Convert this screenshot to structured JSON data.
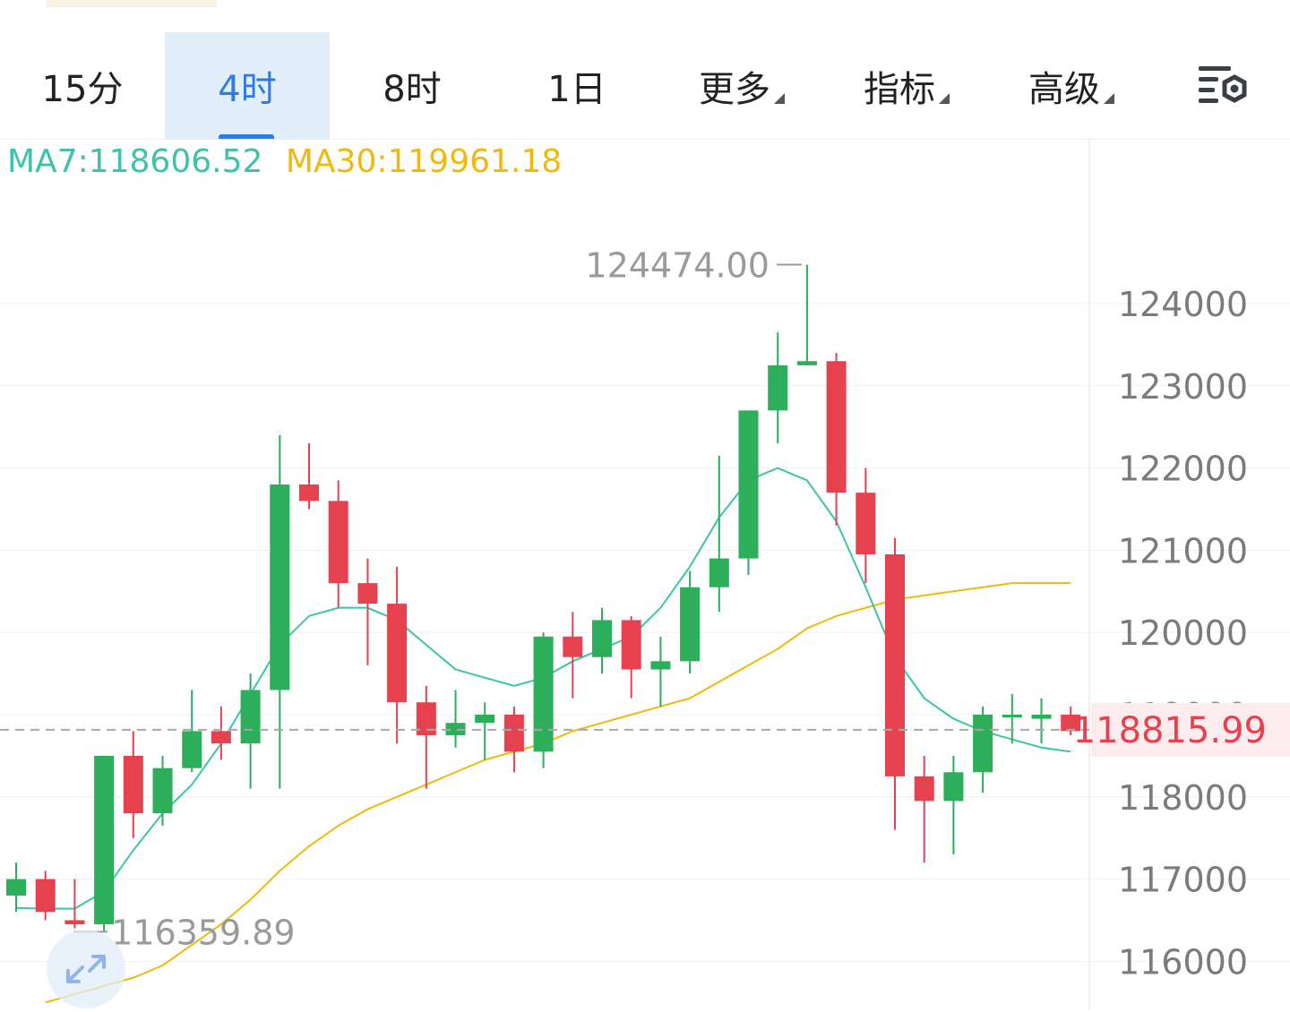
{
  "toolbar": {
    "tabs": [
      "15分",
      "4时",
      "8时",
      "1日"
    ],
    "active_tab": "4时",
    "dropdowns": [
      "更多",
      "指标",
      "高级"
    ],
    "settings_icon": "chart-settings-icon"
  },
  "indicators": {
    "ma7_label": "MA7:118606.52",
    "ma30_label": "MA30:119961.18",
    "ma7_color": "#3cc3a8",
    "ma30_color": "#f0b90b"
  },
  "colors": {
    "up": "#2dae5a",
    "down": "#e5414f",
    "accent": "#2f7be6",
    "current_price_bg": "#fdecee"
  },
  "chart_data": {
    "type": "candlestick",
    "y_ticks": [
      124000,
      123000,
      122000,
      121000,
      120000,
      119000,
      118000,
      117000,
      116000
    ],
    "y_tick_labels": [
      "124000",
      "123000",
      "122000",
      "121000",
      "120000",
      "119000",
      "118000",
      "117000",
      "116000"
    ],
    "ylim": [
      115500,
      126000
    ],
    "grid": true,
    "high_marker": {
      "value": 124474.0,
      "label": "124474.00"
    },
    "low_marker": {
      "value": 116359.89,
      "label": "116359.89"
    },
    "current_price": {
      "value": 118815.99,
      "label": "118815.99"
    },
    "candles": [
      {
        "o": 116800,
        "h": 117200,
        "l": 116600,
        "c": 117000
      },
      {
        "o": 117000,
        "h": 117100,
        "l": 116500,
        "c": 116600
      },
      {
        "o": 116500,
        "h": 117000,
        "l": 116400,
        "c": 116450
      },
      {
        "o": 116450,
        "h": 118500,
        "l": 116360,
        "c": 118500
      },
      {
        "o": 118500,
        "h": 118800,
        "l": 117500,
        "c": 117800
      },
      {
        "o": 117800,
        "h": 118500,
        "l": 117650,
        "c": 118350
      },
      {
        "o": 118350,
        "h": 119300,
        "l": 118300,
        "c": 118800
      },
      {
        "o": 118800,
        "h": 119100,
        "l": 118450,
        "c": 118650
      },
      {
        "o": 118650,
        "h": 119500,
        "l": 118100,
        "c": 119300
      },
      {
        "o": 119300,
        "h": 122400,
        "l": 118100,
        "c": 121800
      },
      {
        "o": 121800,
        "h": 122300,
        "l": 121500,
        "c": 121600
      },
      {
        "o": 121600,
        "h": 121850,
        "l": 120300,
        "c": 120600
      },
      {
        "o": 120600,
        "h": 120900,
        "l": 119600,
        "c": 120350
      },
      {
        "o": 120350,
        "h": 120800,
        "l": 118650,
        "c": 119150
      },
      {
        "o": 119150,
        "h": 119350,
        "l": 118100,
        "c": 118750
      },
      {
        "o": 118750,
        "h": 119300,
        "l": 118600,
        "c": 118900
      },
      {
        "o": 118900,
        "h": 119150,
        "l": 118450,
        "c": 119000
      },
      {
        "o": 119000,
        "h": 119100,
        "l": 118300,
        "c": 118550
      },
      {
        "o": 118550,
        "h": 120000,
        "l": 118350,
        "c": 119950
      },
      {
        "o": 119950,
        "h": 120250,
        "l": 119200,
        "c": 119700
      },
      {
        "o": 119700,
        "h": 120300,
        "l": 119500,
        "c": 120150
      },
      {
        "o": 120150,
        "h": 120200,
        "l": 119200,
        "c": 119550
      },
      {
        "o": 119550,
        "h": 119950,
        "l": 119100,
        "c": 119650
      },
      {
        "o": 119650,
        "h": 120750,
        "l": 119500,
        "c": 120550
      },
      {
        "o": 120550,
        "h": 122150,
        "l": 120250,
        "c": 120900
      },
      {
        "o": 120900,
        "h": 122700,
        "l": 120700,
        "c": 122700
      },
      {
        "o": 122700,
        "h": 123650,
        "l": 122300,
        "c": 123250
      },
      {
        "o": 123250,
        "h": 124474,
        "l": 123250,
        "c": 123300
      },
      {
        "o": 123300,
        "h": 123400,
        "l": 121300,
        "c": 121700
      },
      {
        "o": 121700,
        "h": 122000,
        "l": 120600,
        "c": 120950
      },
      {
        "o": 120950,
        "h": 121150,
        "l": 117600,
        "c": 118250
      },
      {
        "o": 118250,
        "h": 118500,
        "l": 117200,
        "c": 117950
      },
      {
        "o": 117950,
        "h": 118500,
        "l": 117300,
        "c": 118300
      },
      {
        "o": 118300,
        "h": 119100,
        "l": 118050,
        "c": 119000
      },
      {
        "o": 119000,
        "h": 119250,
        "l": 118650,
        "c": 119000
      },
      {
        "o": 118950,
        "h": 119200,
        "l": 118650,
        "c": 119000
      },
      {
        "o": 119000,
        "h": 119100,
        "l": 118750,
        "c": 118800
      }
    ],
    "ma7": [
      116650,
      116640,
      116640,
      116850,
      117350,
      117800,
      118150,
      118650,
      119250,
      119850,
      120200,
      120300,
      120300,
      120150,
      119850,
      119550,
      119450,
      119350,
      119450,
      119650,
      119800,
      119950,
      120300,
      120800,
      121400,
      121850,
      122000,
      121850,
      121350,
      120550,
      119700,
      119200,
      118950,
      118800,
      118700,
      118600,
      118550
    ],
    "ma30": [
      null,
      115500,
      115600,
      115700,
      115800,
      115950,
      116200,
      116450,
      116750,
      117100,
      117400,
      117650,
      117850,
      118000,
      118150,
      118300,
      118450,
      118550,
      118650,
      118800,
      118900,
      119000,
      119100,
      119200,
      119400,
      119600,
      119800,
      120050,
      120200,
      120300,
      120400,
      120450,
      120500,
      120550,
      120600,
      120600,
      120600
    ]
  }
}
